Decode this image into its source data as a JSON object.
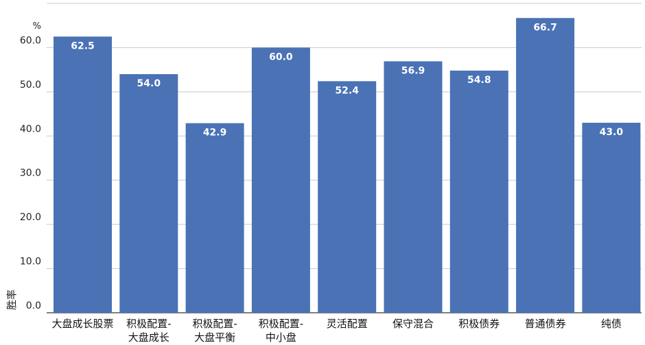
{
  "chart_data": {
    "type": "bar",
    "ylabel": "胜率",
    "unit": "%",
    "ylim": [
      0,
      70
    ],
    "yticks": [
      "0.0",
      "10.0",
      "20.0",
      "30.0",
      "40.0",
      "50.0",
      "60.0",
      "70.0"
    ],
    "grid": true,
    "categories": [
      [
        "大盘成长股票"
      ],
      [
        "积极配置-",
        "大盘成长"
      ],
      [
        "积极配置-",
        "大盘平衡"
      ],
      [
        "积极配置-",
        "中小盘"
      ],
      [
        "灵活配置"
      ],
      [
        "保守混合"
      ],
      [
        "积极债券"
      ],
      [
        "普通债券"
      ],
      [
        "纯债"
      ]
    ],
    "values": [
      62.5,
      54.0,
      42.9,
      60.0,
      52.4,
      56.9,
      54.8,
      66.7,
      43.0
    ],
    "value_labels": [
      "62.5",
      "54.0",
      "42.9",
      "60.0",
      "52.4",
      "56.9",
      "54.8",
      "66.7",
      "43.0"
    ],
    "bar_color": "#4a72b5"
  }
}
